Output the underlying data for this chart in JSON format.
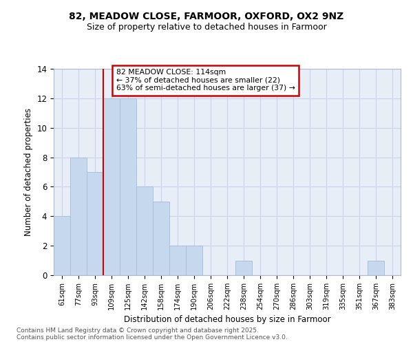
{
  "title1": "82, MEADOW CLOSE, FARMOOR, OXFORD, OX2 9NZ",
  "title2": "Size of property relative to detached houses in Farmoor",
  "xlabel": "Distribution of detached houses by size in Farmoor",
  "ylabel": "Number of detached properties",
  "categories": [
    "61sqm",
    "77sqm",
    "93sqm",
    "109sqm",
    "125sqm",
    "142sqm",
    "158sqm",
    "174sqm",
    "190sqm",
    "206sqm",
    "222sqm",
    "238sqm",
    "254sqm",
    "270sqm",
    "286sqm",
    "303sqm",
    "319sqm",
    "335sqm",
    "351sqm",
    "367sqm",
    "383sqm"
  ],
  "values": [
    4,
    8,
    7,
    12,
    12,
    6,
    5,
    2,
    2,
    0,
    0,
    1,
    0,
    0,
    0,
    0,
    0,
    0,
    0,
    1,
    0
  ],
  "bar_color": "#c5d8ee",
  "bar_edgecolor": "#a8c0dc",
  "grid_color": "#c8d4e8",
  "background_color": "#ffffff",
  "plot_bg_color": "#e8eef8",
  "property_line_index": 3,
  "property_label": "82 MEADOW CLOSE: 114sqm",
  "annotation_smaller": "← 37% of detached houses are smaller (22)",
  "annotation_larger": "63% of semi-detached houses are larger (37) →",
  "annotation_box_color": "#ffffff",
  "annotation_box_edgecolor": "#cc0000",
  "line_color": "#cc0000",
  "ylim": [
    0,
    14
  ],
  "yticks": [
    0,
    2,
    4,
    6,
    8,
    10,
    12,
    14
  ],
  "footer1": "Contains HM Land Registry data © Crown copyright and database right 2025.",
  "footer2": "Contains public sector information licensed under the Open Government Licence v3.0."
}
